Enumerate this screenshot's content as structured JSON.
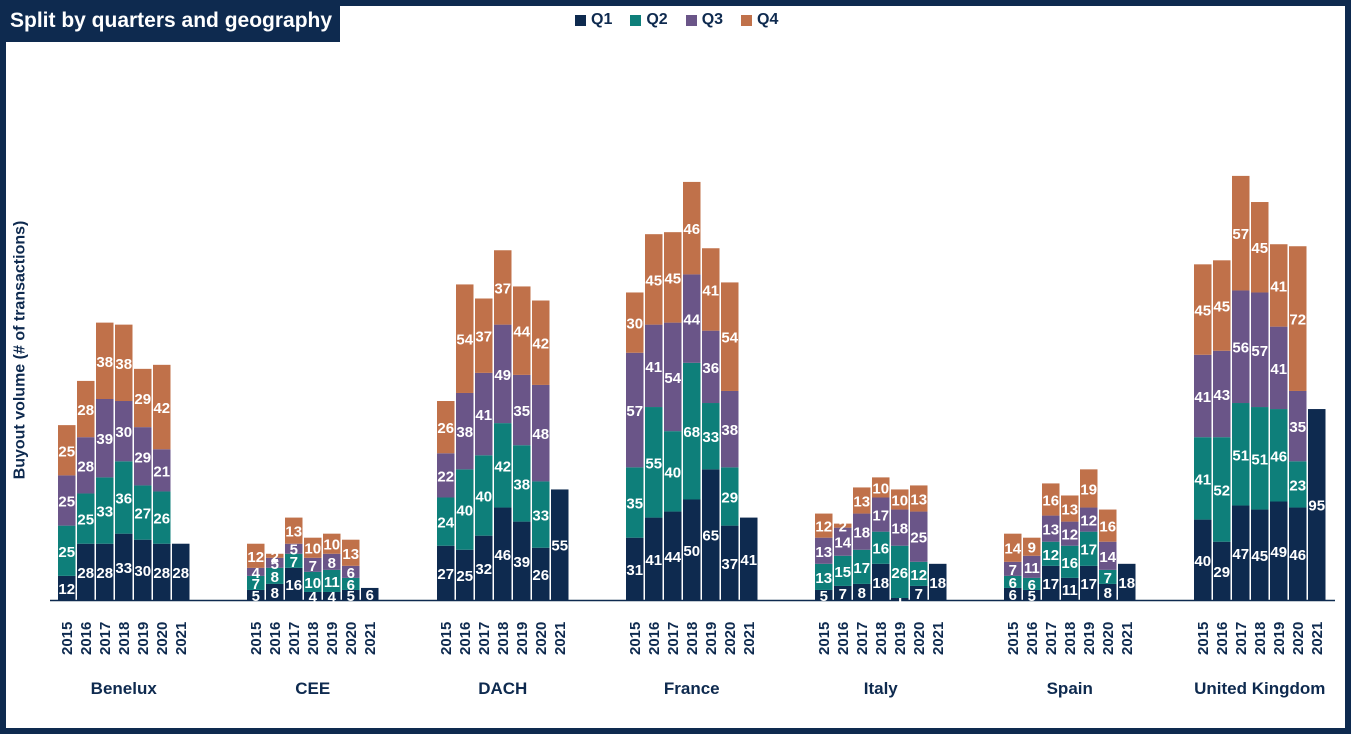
{
  "title": "Split by quarters and geography",
  "chart_data": {
    "type": "bar",
    "stacked": true,
    "ylabel": "Buyout volume (# of transactions)",
    "legend": {
      "placement": "top-center"
    },
    "series_names": [
      "Q1",
      "Q2",
      "Q3",
      "Q4"
    ],
    "colors": {
      "Q1": "#0e2a4f",
      "Q2": "#0e7f7a",
      "Q3": "#6a5588",
      "Q4": "#c0714a",
      "frame": "#0e2a4f"
    },
    "years": [
      "2015",
      "2016",
      "2017",
      "2018",
      "2019",
      "2020",
      "2021"
    ],
    "groups": [
      {
        "name": "Benelux",
        "data": [
          [
            12,
            25,
            25,
            25
          ],
          [
            28,
            25,
            28,
            28
          ],
          [
            28,
            33,
            39,
            38
          ],
          [
            33,
            36,
            30,
            38
          ],
          [
            30,
            27,
            29,
            29
          ],
          [
            28,
            26,
            21,
            42
          ],
          [
            28
          ]
        ]
      },
      {
        "name": "CEE",
        "data": [
          [
            5,
            7,
            4,
            12
          ],
          [
            8,
            8,
            5,
            2
          ],
          [
            16,
            7,
            5,
            13
          ],
          [
            4,
            10,
            7,
            10
          ],
          [
            4,
            11,
            8,
            10
          ],
          [
            5,
            6,
            6,
            13
          ],
          [
            6
          ]
        ]
      },
      {
        "name": "DACH",
        "data": [
          [
            27,
            24,
            22,
            26
          ],
          [
            25,
            40,
            38,
            54
          ],
          [
            32,
            40,
            41,
            37
          ],
          [
            46,
            42,
            49,
            37
          ],
          [
            39,
            38,
            35,
            44
          ],
          [
            26,
            33,
            48,
            42
          ],
          [
            55
          ]
        ]
      },
      {
        "name": "France",
        "data": [
          [
            31,
            35,
            57,
            30
          ],
          [
            41,
            55,
            41,
            45
          ],
          [
            44,
            40,
            54,
            45
          ],
          [
            50,
            68,
            44,
            46
          ],
          [
            65,
            33,
            36,
            41
          ],
          [
            37,
            29,
            38,
            54
          ],
          [
            41
          ]
        ]
      },
      {
        "name": "Italy",
        "data": [
          [
            5,
            13,
            13,
            12
          ],
          [
            7,
            15,
            14,
            2
          ],
          [
            8,
            17,
            18,
            13
          ],
          [
            18,
            16,
            17,
            10
          ],
          [
            1,
            26,
            18,
            10
          ],
          [
            7,
            12,
            25,
            13
          ],
          [
            18
          ]
        ]
      },
      {
        "name": "Spain",
        "data": [
          [
            6,
            6,
            7,
            14
          ],
          [
            5,
            6,
            11,
            9
          ],
          [
            17,
            12,
            13,
            16
          ],
          [
            11,
            16,
            12,
            13
          ],
          [
            17,
            17,
            12,
            19
          ],
          [
            8,
            7,
            14,
            16
          ],
          [
            18
          ]
        ]
      },
      {
        "name": "United Kingdom",
        "data": [
          [
            40,
            41,
            41,
            45
          ],
          [
            29,
            52,
            43,
            45
          ],
          [
            47,
            51,
            56,
            57
          ],
          [
            45,
            51,
            57,
            45
          ],
          [
            49,
            46,
            41,
            41
          ],
          [
            46,
            23,
            35,
            72
          ],
          [
            95
          ]
        ]
      }
    ]
  }
}
